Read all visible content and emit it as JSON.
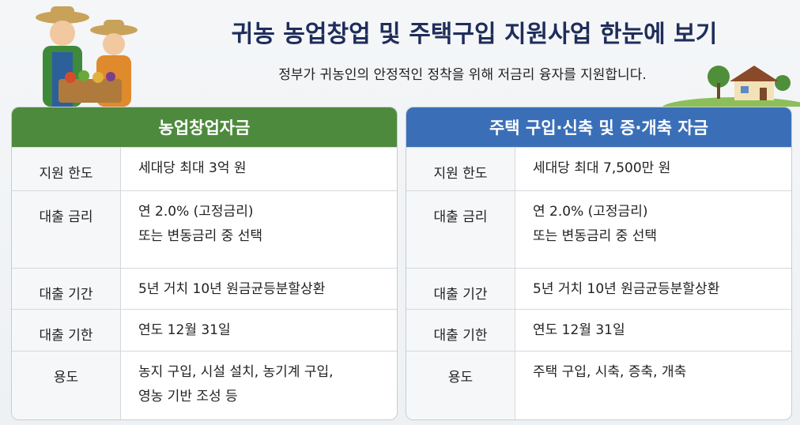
{
  "header": {
    "title": "귀농 농업창업 및 주택구입 지원사업 한눈에 보기",
    "subtitle": "정부가 귀농인의 안정적인 정착을 위해 저금리 융자를 지원합니다."
  },
  "panels": [
    {
      "title": "농업창업자금",
      "rows": [
        {
          "label": "지원 한도",
          "value": [
            "세대당 최대 3억 원"
          ]
        },
        {
          "label": "대출 금리",
          "value": [
            "연 2.0% (고정금리)",
            "또는 변동금리 중 선택"
          ]
        },
        {
          "label": "대출 기간",
          "value": [
            "5년 거치 10년 원금균등분할상환"
          ]
        },
        {
          "label": "대출 기한",
          "value": [
            "연도 12월 31일"
          ]
        },
        {
          "label": "용도",
          "value": [
            "농지 구입, 시설 설치, 농기계 구입,",
            "영농 기반 조성 등"
          ]
        }
      ]
    },
    {
      "title": "주택 구입·신축 및 증·개축 자금",
      "rows": [
        {
          "label": "지원 한도",
          "value": [
            "세대당 최대 7,500만 원"
          ]
        },
        {
          "label": "대출 금리",
          "value": [
            "연 2.0% (고정금리)",
            "또는 변동금리 중 선택"
          ]
        },
        {
          "label": "대출 기간",
          "value": [
            "5년 거치 10년 원금균등분할상환"
          ]
        },
        {
          "label": "대출 기한",
          "value": [
            "연도 12월 31일"
          ]
        },
        {
          "label": "용도",
          "value": [
            "주택 구입, 시축, 증축, 개축"
          ]
        }
      ]
    }
  ]
}
